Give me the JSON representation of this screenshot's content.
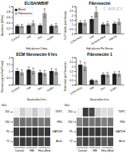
{
  "chart_data": [
    {
      "type": "bar",
      "title": "ELISA/WB/IF",
      "y_label": "Absorbance (450nm)",
      "x_label": "High glucose 3 days",
      "categories": [
        "Control",
        "HM",
        "Hox",
        "HoMx"
      ],
      "series": [
        {
          "name": "Basal",
          "color": "#222222",
          "values": [
            0.28,
            0.3,
            0.3,
            0.28
          ],
          "errors": [
            0.0504,
            0.054,
            0.054,
            0.0504
          ]
        },
        {
          "name": "Fibronectin",
          "color": "#aaaaaa",
          "values": [
            0.28,
            0.38,
            0.75,
            0.3
          ],
          "errors": [
            0.0616,
            0.0836,
            0.165,
            0.066
          ]
        }
      ],
      "ylim": [
        0,
        1.0
      ],
      "yticks": [
        0,
        0.2,
        0.4,
        0.6,
        0.8,
        1
      ],
      "grid": false,
      "legend": "upper left"
    },
    {
      "type": "bar",
      "title": "Fibronectin",
      "y_label": "% of T-tubules (pixel density)",
      "x_label": "High glucose Per Neuron",
      "categories": [
        "CONTROL",
        "HM",
        "Control+Med",
        "HM+M"
      ],
      "series": [
        {
          "color": "#222222",
          "values": [
            1.2,
            1.6,
            1.0,
            1.1
          ],
          "errors": [
            0.216,
            0.288,
            0.18,
            0.198
          ]
        },
        {
          "color": "#aaaaaa",
          "values": [
            1.2,
            2.4,
            1.1,
            1.3
          ],
          "errors": [
            0.264,
            0.528,
            0.242,
            0.286
          ]
        }
      ],
      "ylim": [
        0,
        3.0
      ],
      "yticks": [
        0,
        0.5,
        1,
        1.5,
        2,
        2.5,
        3
      ],
      "grid": false,
      "annotations": [
        "© WILEY"
      ]
    },
    {
      "type": "bar",
      "title": "ECM fibronectin 6 hrs",
      "y_label": "Fibronectin (pg/mL/Total Protein)",
      "x_label": "Basal within 6 hrs",
      "categories": [
        "Control",
        "HM",
        "Hox",
        "HoMx"
      ],
      "series": [
        {
          "color": "#222222",
          "values": [
            1.0,
            1.1,
            0.9,
            1.0
          ],
          "errors": [
            0.18,
            0.198,
            0.162,
            0.18
          ]
        },
        {
          "color": "#aaaaaa",
          "values": [
            0.9,
            1.0,
            0.85,
            0.95
          ],
          "errors": [
            0.198,
            0.22,
            0.187,
            0.209
          ]
        }
      ],
      "ylim": [
        0,
        2.0
      ],
      "yticks": [
        0,
        0.5,
        1,
        1.5,
        2
      ],
      "grid": false
    },
    {
      "type": "bar",
      "title": "Fibronectin 1",
      "y_label": "Protein level (per Fibronectin)",
      "x_label": "Basal within 6 hrs",
      "categories": [
        "CONTROL",
        "HM",
        "Hox",
        "HoMx"
      ],
      "series": [
        {
          "color": "#222222",
          "values": [
            2.2,
            0.5,
            1.1,
            1.2
          ],
          "errors": [
            0.396,
            0.09,
            0.198,
            0.216
          ]
        },
        {
          "color": "#aaaaaa",
          "values": [
            2.0,
            0.4,
            1.1,
            1.2
          ],
          "errors": [
            0.44,
            0.088,
            0.242,
            0.264
          ]
        }
      ],
      "ylim": [
        0,
        3.0
      ],
      "yticks": [
        0,
        0.5,
        1,
        1.5,
        2,
        2.5,
        3
      ],
      "grid": false
    },
    {
      "type": "heatmap",
      "rows": [
        "TSP1",
        "FN1",
        "GAPDH",
        "Actin"
      ],
      "row_markers_title": "kDa",
      "row_markers": [
        250,
        130,
        95,
        72
      ],
      "column_groups": [
        {
          "label": "Control",
          "lanes": 2
        },
        {
          "label": "HM",
          "lanes": 2
        },
        {
          "label": "Hox+Med",
          "lanes": 2
        }
      ],
      "cells": [
        [
          0.1,
          0.3,
          0.2,
          0.32,
          0.18,
          0.25
        ],
        [
          0.6,
          0.65,
          0.62,
          0.68,
          0.6,
          0.63
        ],
        [
          0.8,
          0.85,
          0.82,
          0.86,
          0.8,
          0.83
        ],
        [
          0.78,
          0.82,
          0.8,
          0.84,
          0.78,
          0.8
        ]
      ]
    },
    {
      "type": "heatmap",
      "rows": [
        "TSP1",
        "FN1",
        "GAPDH",
        "Actin"
      ],
      "row_markers_title": "kDa",
      "row_markers": [
        250,
        130,
        95,
        72
      ],
      "column_groups": [
        {
          "label": "Control",
          "lanes": 2
        },
        {
          "label": "HM",
          "lanes": 2
        },
        {
          "label": "Hox+Med",
          "lanes": 2
        }
      ],
      "cells": [
        [
          0.1,
          0.82,
          0.78,
          0.3,
          0.22,
          0.25
        ],
        [
          0.55,
          0.68,
          0.62,
          0.65,
          0.58,
          0.62
        ],
        [
          0.78,
          0.85,
          0.8,
          0.83,
          0.78,
          0.8
        ],
        [
          0.72,
          0.8,
          0.76,
          0.8,
          0.72,
          0.76
        ]
      ]
    }
  ]
}
